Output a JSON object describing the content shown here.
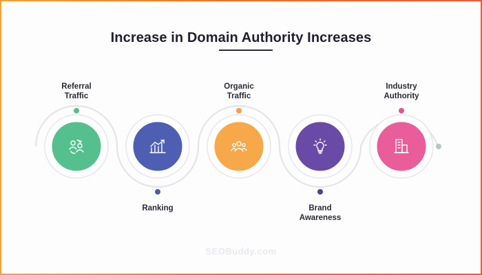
{
  "title": "Increase in Domain Authority Increases",
  "watermark": "SEOBuddy.com",
  "steps": [
    {
      "label": "Referral Traffic",
      "color": "#55c08e",
      "dot_color": "#55c08e",
      "icon": "users-exchange-icon"
    },
    {
      "label": "Ranking",
      "color": "#4e5fb3",
      "dot_color": "#4d5aa6",
      "icon": "bar-chart-trend-icon"
    },
    {
      "label": "Organic Traffic",
      "color": "#f7a849",
      "dot_color": "#f5a14a",
      "icon": "user-group-icon"
    },
    {
      "label": "Brand Awareness",
      "color": "#6a4aa7",
      "dot_color": "#4f3f8f",
      "icon": "lightbulb-icon"
    },
    {
      "label": "Industry Authority",
      "color": "#e85d9a",
      "dot_color": "#e2568f",
      "icon": "building-document-icon"
    }
  ],
  "path_end_dot_color": "#b7c7c2"
}
